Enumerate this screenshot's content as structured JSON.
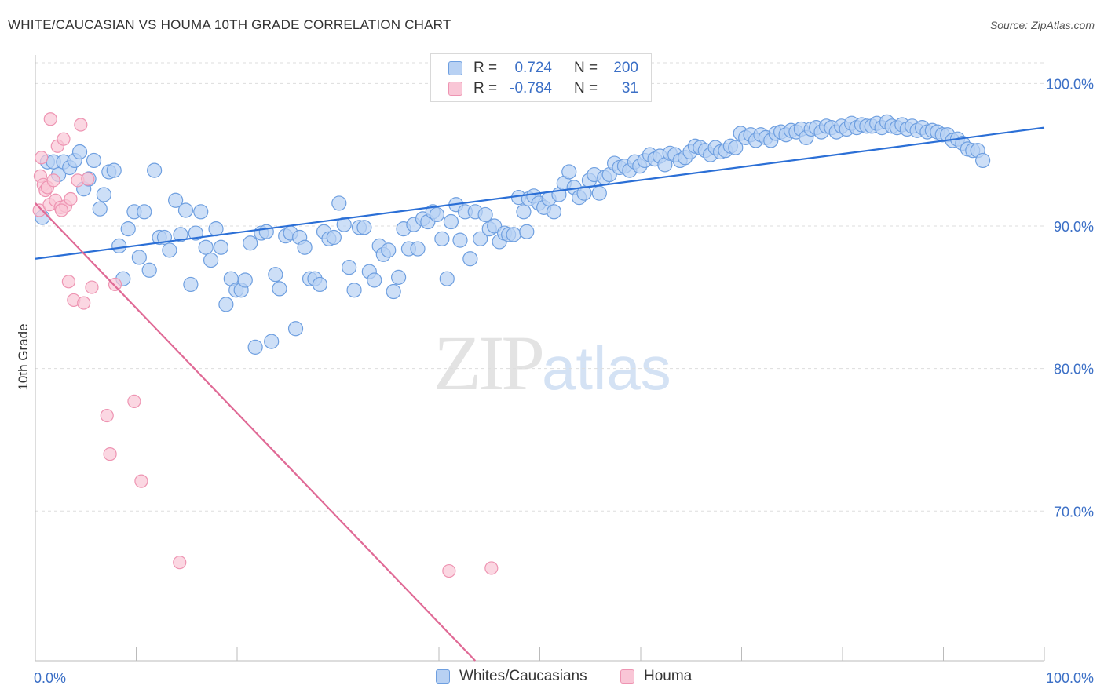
{
  "title": "WHITE/CAUCASIAN VS HOUMA 10TH GRADE CORRELATION CHART",
  "source": "Source: ZipAtlas.com",
  "watermark": {
    "zip": "ZIP",
    "atlas": "atlas"
  },
  "legend_top": {
    "rows": [
      {
        "r_label": "R =",
        "r_value": "0.724",
        "n_label": "N =",
        "n_value": "200"
      },
      {
        "r_label": "R =",
        "r_value": "-0.784",
        "n_label": "N =",
        "n_value": "31"
      }
    ]
  },
  "legend_bottom": [
    "Whites/Caucasians",
    "Houma"
  ],
  "colors": {
    "blue_fill": "#b8d1f3",
    "blue_stroke": "#6e9fe0",
    "blue_line": "#2b6fd6",
    "pink_fill": "#f9c6d6",
    "pink_stroke": "#ee94b2",
    "pink_line": "#e06a96",
    "tick_label": "#3b6fc6",
    "grid": "#dddddd"
  },
  "chart_data": {
    "type": "scatter",
    "title": "WHITE/CAUCASIAN VS HOUMA 10TH GRADE CORRELATION CHART",
    "xlabel": "",
    "ylabel": "10th Grade",
    "xlim": [
      0,
      100
    ],
    "ylim": [
      59.5,
      102
    ],
    "x_tick_labels": [
      "0.0%",
      "100.0%"
    ],
    "y_ticks": [
      70,
      80,
      90,
      100
    ],
    "y_tick_labels": [
      "70.0%",
      "80.0%",
      "90.0%",
      "100.0%"
    ],
    "grid": true,
    "legend_placement": "top-center",
    "series": [
      {
        "name": "Whites/Caucasians",
        "r": 0.724,
        "n": 200,
        "trend": {
          "x": [
            0,
            100
          ],
          "y": [
            87.7,
            96.9
          ]
        },
        "points": [
          [
            0.7,
            90.6
          ],
          [
            1.2,
            94.5
          ],
          [
            1.8,
            94.5
          ],
          [
            2.3,
            93.6
          ],
          [
            2.8,
            94.5
          ],
          [
            3.4,
            94.1
          ],
          [
            3.9,
            94.6
          ],
          [
            4.4,
            95.2
          ],
          [
            4.8,
            92.6
          ],
          [
            5.3,
            93.3
          ],
          [
            5.8,
            94.6
          ],
          [
            6.4,
            91.2
          ],
          [
            6.8,
            92.2
          ],
          [
            7.3,
            93.8
          ],
          [
            7.8,
            93.9
          ],
          [
            8.3,
            88.6
          ],
          [
            8.7,
            86.3
          ],
          [
            9.2,
            89.8
          ],
          [
            9.8,
            91.0
          ],
          [
            10.3,
            87.8
          ],
          [
            10.8,
            91.0
          ],
          [
            11.3,
            86.9
          ],
          [
            11.8,
            93.9
          ],
          [
            12.3,
            89.2
          ],
          [
            12.8,
            89.2
          ],
          [
            13.3,
            88.3
          ],
          [
            13.9,
            91.8
          ],
          [
            14.4,
            89.4
          ],
          [
            14.9,
            91.1
          ],
          [
            15.4,
            85.9
          ],
          [
            15.9,
            89.5
          ],
          [
            16.4,
            91.0
          ],
          [
            16.9,
            88.5
          ],
          [
            17.4,
            87.6
          ],
          [
            17.9,
            89.8
          ],
          [
            18.4,
            88.5
          ],
          [
            18.9,
            84.5
          ],
          [
            19.4,
            86.3
          ],
          [
            19.9,
            85.5
          ],
          [
            20.4,
            85.5
          ],
          [
            20.8,
            86.2
          ],
          [
            21.3,
            88.8
          ],
          [
            21.8,
            81.5
          ],
          [
            22.4,
            89.5
          ],
          [
            22.9,
            89.6
          ],
          [
            23.4,
            81.9
          ],
          [
            23.8,
            86.6
          ],
          [
            24.2,
            85.6
          ],
          [
            24.8,
            89.3
          ],
          [
            25.3,
            89.5
          ],
          [
            25.8,
            82.8
          ],
          [
            26.2,
            89.2
          ],
          [
            26.7,
            88.5
          ],
          [
            27.2,
            86.3
          ],
          [
            27.7,
            86.3
          ],
          [
            28.2,
            85.9
          ],
          [
            28.6,
            89.6
          ],
          [
            29.1,
            89.1
          ],
          [
            29.6,
            89.2
          ],
          [
            30.1,
            91.6
          ],
          [
            30.6,
            90.1
          ],
          [
            31.1,
            87.1
          ],
          [
            31.6,
            85.5
          ],
          [
            32.1,
            89.9
          ],
          [
            32.6,
            89.9
          ],
          [
            33.1,
            86.8
          ],
          [
            33.6,
            86.2
          ],
          [
            34.1,
            88.6
          ],
          [
            34.5,
            88.0
          ],
          [
            35.0,
            88.3
          ],
          [
            35.5,
            85.4
          ],
          [
            36.0,
            86.4
          ],
          [
            36.5,
            89.8
          ],
          [
            37.0,
            88.4
          ],
          [
            37.5,
            90.1
          ],
          [
            37.9,
            88.4
          ],
          [
            38.4,
            90.5
          ],
          [
            38.9,
            90.3
          ],
          [
            39.4,
            91.0
          ],
          [
            39.8,
            90.8
          ],
          [
            40.3,
            89.1
          ],
          [
            40.8,
            86.3
          ],
          [
            41.2,
            90.3
          ],
          [
            41.7,
            91.5
          ],
          [
            42.1,
            89.0
          ],
          [
            42.6,
            91.0
          ],
          [
            43.1,
            87.7
          ],
          [
            43.6,
            91.0
          ],
          [
            44.1,
            89.1
          ],
          [
            44.6,
            90.8
          ],
          [
            45.0,
            89.8
          ],
          [
            45.5,
            90.0
          ],
          [
            46.0,
            88.9
          ],
          [
            46.5,
            89.5
          ],
          [
            46.9,
            89.4
          ],
          [
            47.4,
            89.4
          ],
          [
            47.9,
            92.0
          ],
          [
            48.4,
            91.0
          ],
          [
            48.9,
            91.9
          ],
          [
            49.4,
            92.1
          ],
          [
            49.9,
            91.6
          ],
          [
            50.4,
            91.3
          ],
          [
            50.9,
            91.9
          ],
          [
            51.4,
            91.0
          ],
          [
            51.9,
            92.2
          ],
          [
            52.4,
            93.0
          ],
          [
            52.9,
            93.8
          ],
          [
            53.4,
            92.7
          ],
          [
            53.9,
            92.0
          ],
          [
            54.4,
            92.3
          ],
          [
            54.9,
            93.2
          ],
          [
            55.4,
            93.6
          ],
          [
            55.9,
            92.3
          ],
          [
            56.4,
            93.4
          ],
          [
            56.9,
            93.6
          ],
          [
            57.4,
            94.4
          ],
          [
            57.9,
            94.1
          ],
          [
            58.4,
            94.2
          ],
          [
            58.9,
            93.9
          ],
          [
            59.4,
            94.5
          ],
          [
            59.9,
            94.2
          ],
          [
            60.4,
            94.6
          ],
          [
            60.9,
            95.0
          ],
          [
            61.4,
            94.7
          ],
          [
            61.9,
            94.9
          ],
          [
            62.4,
            94.3
          ],
          [
            62.9,
            95.1
          ],
          [
            63.4,
            95.0
          ],
          [
            63.9,
            94.6
          ],
          [
            64.4,
            94.8
          ],
          [
            64.9,
            95.2
          ],
          [
            65.4,
            95.6
          ],
          [
            65.9,
            95.5
          ],
          [
            66.4,
            95.3
          ],
          [
            66.9,
            95.0
          ],
          [
            67.4,
            95.5
          ],
          [
            67.9,
            95.2
          ],
          [
            68.4,
            95.3
          ],
          [
            68.9,
            95.6
          ],
          [
            69.4,
            95.5
          ],
          [
            69.9,
            96.5
          ],
          [
            70.4,
            96.2
          ],
          [
            70.9,
            96.4
          ],
          [
            71.4,
            96.0
          ],
          [
            71.9,
            96.4
          ],
          [
            72.4,
            96.2
          ],
          [
            72.9,
            96.0
          ],
          [
            73.4,
            96.5
          ],
          [
            73.9,
            96.6
          ],
          [
            74.4,
            96.4
          ],
          [
            74.9,
            96.7
          ],
          [
            75.4,
            96.6
          ],
          [
            75.9,
            96.8
          ],
          [
            76.4,
            96.2
          ],
          [
            76.9,
            96.8
          ],
          [
            77.4,
            96.9
          ],
          [
            77.9,
            96.6
          ],
          [
            78.4,
            97.0
          ],
          [
            78.9,
            96.9
          ],
          [
            79.4,
            96.6
          ],
          [
            79.9,
            97.0
          ],
          [
            80.4,
            96.8
          ],
          [
            80.9,
            97.2
          ],
          [
            81.4,
            96.9
          ],
          [
            81.9,
            97.1
          ],
          [
            82.4,
            97.0
          ],
          [
            82.9,
            97.0
          ],
          [
            83.4,
            97.2
          ],
          [
            83.9,
            96.9
          ],
          [
            84.4,
            97.3
          ],
          [
            84.9,
            97.0
          ],
          [
            85.4,
            96.9
          ],
          [
            85.9,
            97.1
          ],
          [
            86.4,
            96.8
          ],
          [
            86.9,
            97.0
          ],
          [
            87.4,
            96.7
          ],
          [
            87.9,
            96.9
          ],
          [
            88.4,
            96.6
          ],
          [
            88.9,
            96.7
          ],
          [
            89.4,
            96.6
          ],
          [
            89.9,
            96.4
          ],
          [
            90.4,
            96.4
          ],
          [
            90.9,
            96.0
          ],
          [
            91.4,
            96.1
          ],
          [
            91.9,
            95.8
          ],
          [
            92.4,
            95.4
          ],
          [
            92.9,
            95.3
          ],
          [
            93.4,
            95.3
          ],
          [
            93.9,
            94.6
          ],
          [
            48.7,
            89.6
          ]
        ]
      },
      {
        "name": "Houma",
        "r": -0.784,
        "n": 31,
        "trend": {
          "x": [
            0,
            43.6
          ],
          "y": [
            91.6,
            59.5
          ]
        },
        "points": [
          [
            0.4,
            91.1
          ],
          [
            0.5,
            93.5
          ],
          [
            0.6,
            94.8
          ],
          [
            0.8,
            92.9
          ],
          [
            1.0,
            92.5
          ],
          [
            1.2,
            92.7
          ],
          [
            1.4,
            91.5
          ],
          [
            1.5,
            97.5
          ],
          [
            1.8,
            93.2
          ],
          [
            2.0,
            91.8
          ],
          [
            2.2,
            95.6
          ],
          [
            2.5,
            91.3
          ],
          [
            2.8,
            96.1
          ],
          [
            3.0,
            91.4
          ],
          [
            3.3,
            86.1
          ],
          [
            3.5,
            91.9
          ],
          [
            3.8,
            84.8
          ],
          [
            4.2,
            93.2
          ],
          [
            4.5,
            97.1
          ],
          [
            4.8,
            84.6
          ],
          [
            5.2,
            93.3
          ],
          [
            5.6,
            85.7
          ],
          [
            7.1,
            76.7
          ],
          [
            7.4,
            74.0
          ],
          [
            7.9,
            85.9
          ],
          [
            9.8,
            77.7
          ],
          [
            10.5,
            72.1
          ],
          [
            14.3,
            66.4
          ],
          [
            41.0,
            65.8
          ],
          [
            45.2,
            66.0
          ],
          [
            2.6,
            91.1
          ]
        ]
      }
    ]
  }
}
